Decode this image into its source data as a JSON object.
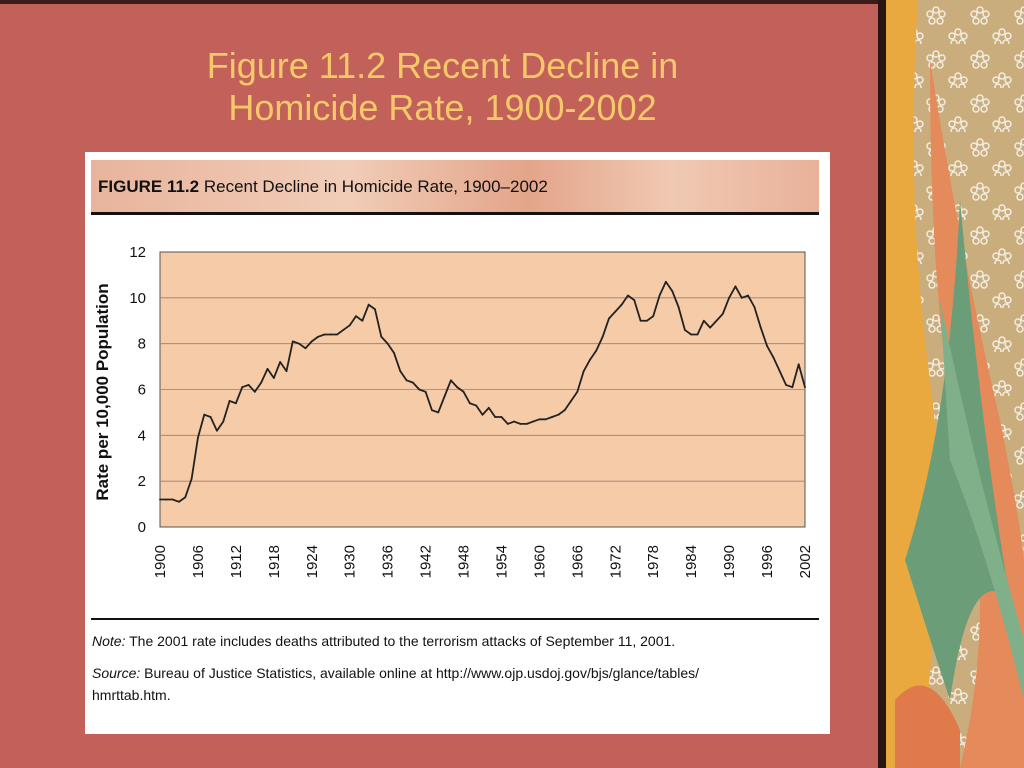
{
  "slide": {
    "title": "Figure 11.2 Recent Decline in\nHomicide Rate, 1900-2002",
    "colors": {
      "background": "#c2605a",
      "title": "#f5c86a",
      "side_panel": "#c9ad7c"
    }
  },
  "figure": {
    "label": "FIGURE 11.2",
    "caption": "Recent Decline in Homicide Rate, 1900–2002",
    "note_label": "Note:",
    "note_text": "The 2001 rate includes deaths attributed to the terrorism attacks of September 11, 2001.",
    "source_label": "Source:",
    "source_text": "Bureau of Justice Statistics, available online at http://www.ojp.usdoj.gov/bjs/glance/tables/",
    "source_text_2": "hmrttab.htm."
  },
  "chart_data": {
    "type": "line",
    "title": "",
    "xlabel": "",
    "ylabel": "Rate per 10,000 Population",
    "xlim": [
      1900,
      2002
    ],
    "ylim": [
      0,
      12
    ],
    "y_ticks": [
      "0",
      "2",
      "4",
      "6",
      "8",
      "10",
      "12"
    ],
    "x_ticks": [
      "1900",
      "1906",
      "1912",
      "1918",
      "1924",
      "1930",
      "1936",
      "1942",
      "1948",
      "1954",
      "1960",
      "1966",
      "1972",
      "1978",
      "1984",
      "1990",
      "1996",
      "2002"
    ],
    "grid": true,
    "plot_background": "#f5cba8",
    "line_color": "#222222",
    "series": [
      {
        "x": [
          1900,
          1901,
          1902,
          1903,
          1904,
          1905,
          1906,
          1907,
          1908,
          1909,
          1910,
          1911,
          1912,
          1913,
          1914,
          1915,
          1916,
          1917,
          1918,
          1919,
          1920,
          1921,
          1922,
          1923,
          1924,
          1925,
          1926,
          1927,
          1928,
          1929,
          1930,
          1931,
          1932,
          1933,
          1934,
          1935,
          1936,
          1937,
          1938,
          1939,
          1940,
          1941,
          1942,
          1943,
          1944,
          1945,
          1946,
          1947,
          1948,
          1949,
          1950,
          1951,
          1952,
          1953,
          1954,
          1955,
          1956,
          1957,
          1958,
          1959,
          1960,
          1961,
          1962,
          1963,
          1964,
          1965,
          1966,
          1967,
          1968,
          1969,
          1970,
          1971,
          1972,
          1973,
          1974,
          1975,
          1976,
          1977,
          1978,
          1979,
          1980,
          1981,
          1982,
          1983,
          1984,
          1985,
          1986,
          1987,
          1988,
          1989,
          1990,
          1991,
          1992,
          1993,
          1994,
          1995,
          1996,
          1997,
          1998,
          1999,
          2000,
          2001,
          2002
        ],
        "y": [
          1.2,
          1.2,
          1.2,
          1.1,
          1.3,
          2.1,
          3.9,
          4.9,
          4.8,
          4.2,
          4.6,
          5.5,
          5.4,
          6.1,
          6.2,
          5.9,
          6.3,
          6.9,
          6.5,
          7.2,
          6.8,
          8.1,
          8.0,
          7.8,
          8.1,
          8.3,
          8.4,
          8.4,
          8.4,
          8.6,
          8.8,
          9.2,
          9.0,
          9.7,
          9.5,
          8.3,
          8.0,
          7.6,
          6.8,
          6.4,
          6.3,
          6.0,
          5.9,
          5.1,
          5.0,
          5.7,
          6.4,
          6.1,
          5.9,
          5.4,
          5.3,
          4.9,
          5.2,
          4.8,
          4.8,
          4.5,
          4.6,
          4.5,
          4.5,
          4.6,
          4.7,
          4.7,
          4.8,
          4.9,
          5.1,
          5.5,
          5.9,
          6.8,
          7.3,
          7.7,
          8.3,
          9.1,
          9.4,
          9.7,
          10.1,
          9.9,
          9.0,
          9.0,
          9.2,
          10.1,
          10.7,
          10.3,
          9.6,
          8.6,
          8.4,
          8.4,
          9.0,
          8.7,
          9.0,
          9.3,
          10.0,
          10.5,
          10.0,
          10.1,
          9.6,
          8.7,
          7.9,
          7.4,
          6.8,
          6.2,
          6.1,
          7.1,
          6.1
        ]
      }
    ]
  }
}
